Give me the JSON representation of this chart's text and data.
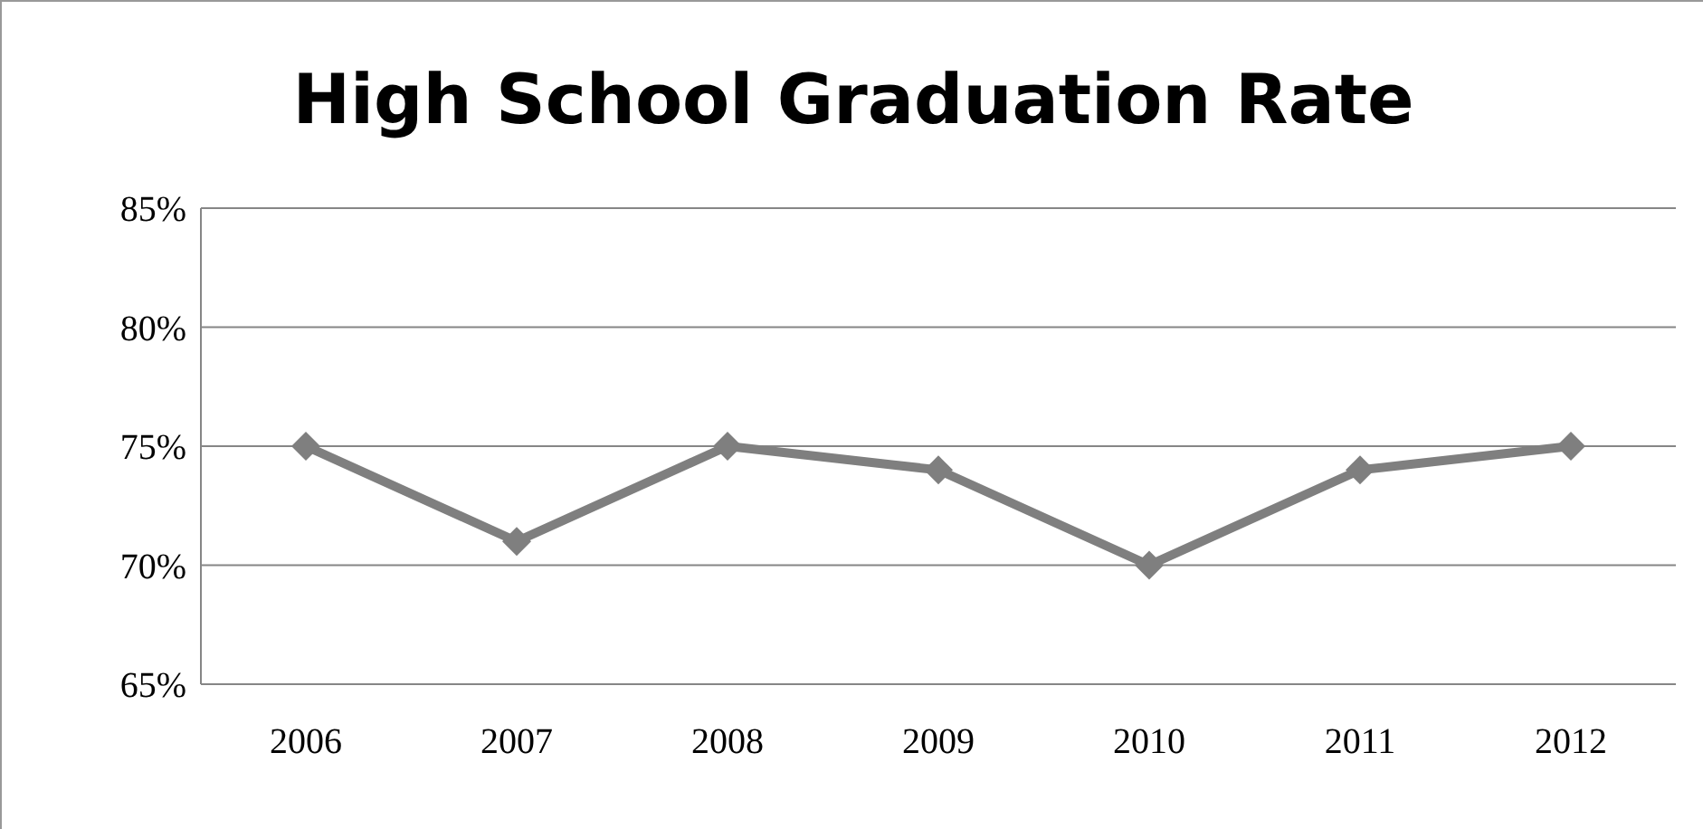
{
  "chart_data": {
    "type": "line",
    "title": "High School Graduation Rate",
    "categories": [
      "2006",
      "2007",
      "2008",
      "2009",
      "2010",
      "2011",
      "2012"
    ],
    "series": [
      {
        "color": "#7f7f7f",
        "values": [
          75,
          71,
          75,
          74,
          70,
          74,
          75
        ]
      }
    ],
    "ylim": [
      65,
      85
    ],
    "yticks": [
      {
        "value": 65,
        "label": "65%"
      },
      {
        "value": 70,
        "label": "70%"
      },
      {
        "value": 75,
        "label": "75%"
      },
      {
        "value": 80,
        "label": "80%"
      },
      {
        "value": 85,
        "label": "85%"
      }
    ],
    "grid": "y",
    "marker": "diamond",
    "line_style": "solid"
  }
}
